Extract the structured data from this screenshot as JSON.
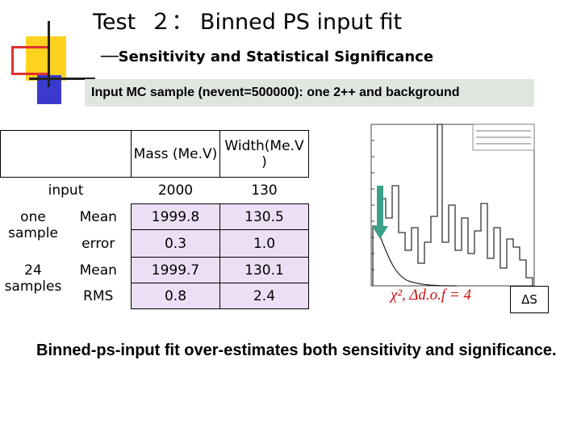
{
  "title": "Test  ２： Binned PS input fit",
  "subtitle": "──Sensitivity and Statistical Significance",
  "banner": "Input MC sample (nevent=500000): one 2++ and background",
  "table": {
    "header": {
      "mass": "Mass (Me.V)",
      "width": "Width(Me.V )"
    },
    "input_row": {
      "label": "input",
      "mass": "2000",
      "width": "130"
    },
    "one_sample": {
      "label": "one sample",
      "mean": {
        "label": "Mean",
        "mass": "1999.8",
        "width": "130.5"
      },
      "error": {
        "label": "error",
        "mass": "0.3",
        "width": "1.0"
      }
    },
    "samples_24": {
      "label": "24 samples",
      "mean": {
        "label": "Mean",
        "mass": "1999.7",
        "width": "130.1"
      },
      "rms": {
        "label": "RMS",
        "mass": "0.8",
        "width": "2.4"
      }
    }
  },
  "plot": {
    "formula": "χ², Δd.o.f = 4",
    "arrow_color": "#3aa088"
  },
  "delta_label": "ΔS",
  "conclusion": "Binned-ps-input fit over-estimates both sensitivity and significance.",
  "colors": {
    "banner_bg": "#dfe6df",
    "cell_bg": "#ecdff5",
    "deco_yellow": "#ffd21f",
    "deco_red": "#e23030",
    "deco_blue": "#3a3acc"
  }
}
